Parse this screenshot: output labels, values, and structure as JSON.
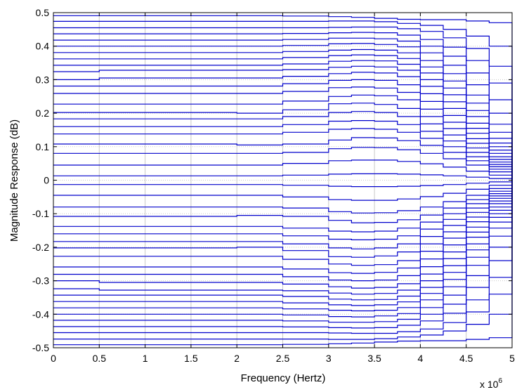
{
  "chart_data": {
    "type": "line",
    "title": "",
    "xlabel": "Frequency (Hertz)",
    "ylabel": "Magnitude Response (dB)",
    "x_multiplier_prefix": "x 10",
    "x_multiplier_exponent": "6",
    "xlim": [
      0,
      5000000
    ],
    "ylim": [
      -0.5,
      0.5
    ],
    "x_ticks": [
      0,
      500000,
      1000000,
      1500000,
      2000000,
      2500000,
      3000000,
      3500000,
      4000000,
      4500000,
      5000000
    ],
    "x_tick_labels": [
      "0",
      "0.5",
      "1",
      "1.5",
      "2",
      "2.5",
      "3",
      "3.5",
      "4",
      "4.5",
      "5"
    ],
    "y_ticks": [
      0.5,
      0.4,
      0.3,
      0.2,
      0.1,
      0,
      -0.1,
      -0.2,
      -0.3,
      -0.4,
      -0.5
    ],
    "y_tick_labels": [
      "0.5",
      "0.4",
      "0.3",
      "0.2",
      "0.1",
      "0",
      "-0.1",
      "-0.2",
      "-0.3",
      "-0.4",
      "-0.5"
    ],
    "grid": true,
    "line_color": "#0000cc",
    "series_x": [
      0,
      500000,
      1000000,
      1500000,
      2000000,
      2500000,
      3000000,
      3250000,
      3500000,
      3750000,
      4000000,
      4250000,
      4500000,
      4750000,
      5000000
    ],
    "series": [
      {
        "values": [
          0.491,
          0.491,
          0.491,
          0.491,
          0.491,
          0.49,
          0.488,
          0.486,
          0.483,
          0.48,
          0.479,
          0.479,
          0.475,
          0.47,
          0.0
        ]
      },
      {
        "values": [
          0.474,
          0.474,
          0.474,
          0.474,
          0.474,
          0.474,
          0.475,
          0.475,
          0.473,
          0.468,
          0.462,
          0.45,
          0.43,
          0.4,
          0.0
        ]
      },
      {
        "values": [
          0.455,
          0.455,
          0.455,
          0.455,
          0.455,
          0.455,
          0.456,
          0.457,
          0.457,
          0.452,
          0.444,
          0.425,
          0.393,
          0.34,
          0.0
        ]
      },
      {
        "values": [
          0.437,
          0.437,
          0.437,
          0.437,
          0.437,
          0.438,
          0.44,
          0.441,
          0.44,
          0.433,
          0.42,
          0.397,
          0.357,
          0.29,
          0.0
        ]
      },
      {
        "values": [
          0.418,
          0.418,
          0.418,
          0.418,
          0.418,
          0.42,
          0.424,
          0.424,
          0.422,
          0.415,
          0.4,
          0.37,
          0.32,
          0.24,
          0.0
        ]
      },
      {
        "values": [
          0.4,
          0.4,
          0.4,
          0.4,
          0.4,
          0.402,
          0.407,
          0.408,
          0.405,
          0.398,
          0.38,
          0.343,
          0.285,
          0.2,
          0.0
        ]
      },
      {
        "values": [
          0.381,
          0.381,
          0.381,
          0.381,
          0.381,
          0.384,
          0.388,
          0.39,
          0.388,
          0.38,
          0.357,
          0.318,
          0.254,
          0.167,
          0.0
        ]
      },
      {
        "values": [
          0.362,
          0.362,
          0.362,
          0.362,
          0.362,
          0.366,
          0.372,
          0.374,
          0.372,
          0.363,
          0.338,
          0.296,
          0.23,
          0.143,
          0.0
        ]
      },
      {
        "values": [
          0.343,
          0.343,
          0.343,
          0.343,
          0.343,
          0.347,
          0.355,
          0.357,
          0.356,
          0.346,
          0.32,
          0.275,
          0.208,
          0.125,
          0.0
        ]
      },
      {
        "values": [
          0.324,
          0.328,
          0.328,
          0.328,
          0.328,
          0.33,
          0.337,
          0.34,
          0.338,
          0.328,
          0.3,
          0.255,
          0.19,
          0.111,
          0.0
        ]
      },
      {
        "values": [
          0.3,
          0.305,
          0.305,
          0.305,
          0.305,
          0.31,
          0.318,
          0.322,
          0.32,
          0.309,
          0.28,
          0.234,
          0.17,
          0.1,
          0.0
        ]
      },
      {
        "values": [
          0.281,
          0.281,
          0.281,
          0.281,
          0.281,
          0.288,
          0.298,
          0.3,
          0.298,
          0.285,
          0.258,
          0.214,
          0.155,
          0.09,
          0.0
        ]
      },
      {
        "values": [
          0.259,
          0.259,
          0.259,
          0.259,
          0.259,
          0.265,
          0.276,
          0.278,
          0.275,
          0.262,
          0.235,
          0.193,
          0.14,
          0.08,
          0.0
        ]
      },
      {
        "values": [
          0.227,
          0.227,
          0.227,
          0.227,
          0.227,
          0.236,
          0.25,
          0.254,
          0.252,
          0.24,
          0.212,
          0.173,
          0.124,
          0.07,
          0.0
        ]
      },
      {
        "values": [
          0.202,
          0.202,
          0.202,
          0.202,
          0.2,
          0.21,
          0.228,
          0.23,
          0.226,
          0.214,
          0.19,
          0.154,
          0.11,
          0.062,
          0.0
        ]
      },
      {
        "values": [
          0.183,
          0.183,
          0.183,
          0.183,
          0.183,
          0.19,
          0.202,
          0.205,
          0.202,
          0.19,
          0.168,
          0.135,
          0.096,
          0.054,
          0.0
        ]
      },
      {
        "values": [
          0.16,
          0.16,
          0.16,
          0.16,
          0.16,
          0.166,
          0.176,
          0.178,
          0.176,
          0.166,
          0.146,
          0.117,
          0.083,
          0.047,
          0.0
        ]
      },
      {
        "values": [
          0.138,
          0.138,
          0.138,
          0.138,
          0.138,
          0.143,
          0.152,
          0.154,
          0.152,
          0.143,
          0.125,
          0.1,
          0.07,
          0.04,
          0.0
        ]
      },
      {
        "values": [
          0.108,
          0.108,
          0.108,
          0.108,
          0.105,
          0.108,
          0.12,
          0.127,
          0.126,
          0.118,
          0.104,
          0.083,
          0.058,
          0.033,
          0.0
        ]
      },
      {
        "values": [
          0.08,
          0.08,
          0.08,
          0.08,
          0.08,
          0.083,
          0.094,
          0.098,
          0.097,
          0.091,
          0.08,
          0.064,
          0.045,
          0.025,
          0.0
        ]
      },
      {
        "values": [
          0.045,
          0.045,
          0.045,
          0.045,
          0.045,
          0.05,
          0.058,
          0.06,
          0.06,
          0.056,
          0.049,
          0.039,
          0.027,
          0.015,
          0.0
        ]
      },
      {
        "values": [
          0.013,
          0.013,
          0.013,
          0.013,
          0.013,
          0.015,
          0.018,
          0.019,
          0.019,
          0.018,
          0.016,
          0.013,
          0.009,
          0.005,
          0.0
        ]
      },
      {
        "values": [
          -0.013,
          -0.013,
          -0.013,
          -0.013,
          -0.013,
          -0.015,
          -0.018,
          -0.019,
          -0.019,
          -0.018,
          -0.016,
          -0.013,
          -0.009,
          -0.005,
          0.0
        ]
      },
      {
        "values": [
          -0.045,
          -0.045,
          -0.045,
          -0.045,
          -0.045,
          -0.05,
          -0.058,
          -0.06,
          -0.06,
          -0.056,
          -0.049,
          -0.039,
          -0.027,
          -0.015,
          0.0
        ]
      },
      {
        "values": [
          -0.08,
          -0.08,
          -0.08,
          -0.08,
          -0.08,
          -0.083,
          -0.094,
          -0.098,
          -0.097,
          -0.091,
          -0.08,
          -0.064,
          -0.045,
          -0.025,
          0.0
        ]
      },
      {
        "values": [
          -0.108,
          -0.108,
          -0.108,
          -0.108,
          -0.105,
          -0.108,
          -0.12,
          -0.127,
          -0.126,
          -0.118,
          -0.104,
          -0.083,
          -0.058,
          -0.033,
          0.0
        ]
      },
      {
        "values": [
          -0.138,
          -0.138,
          -0.138,
          -0.138,
          -0.138,
          -0.143,
          -0.152,
          -0.154,
          -0.152,
          -0.143,
          -0.125,
          -0.1,
          -0.07,
          -0.04,
          0.0
        ]
      },
      {
        "values": [
          -0.16,
          -0.16,
          -0.16,
          -0.16,
          -0.16,
          -0.166,
          -0.176,
          -0.178,
          -0.176,
          -0.166,
          -0.146,
          -0.117,
          -0.083,
          -0.047,
          0.0
        ]
      },
      {
        "values": [
          -0.183,
          -0.183,
          -0.183,
          -0.183,
          -0.183,
          -0.19,
          -0.202,
          -0.205,
          -0.202,
          -0.19,
          -0.168,
          -0.135,
          -0.096,
          -0.054,
          0.0
        ]
      },
      {
        "values": [
          -0.202,
          -0.202,
          -0.202,
          -0.202,
          -0.2,
          -0.21,
          -0.228,
          -0.23,
          -0.226,
          -0.214,
          -0.19,
          -0.154,
          -0.11,
          -0.062,
          0.0
        ]
      },
      {
        "values": [
          -0.227,
          -0.227,
          -0.227,
          -0.227,
          -0.227,
          -0.236,
          -0.25,
          -0.254,
          -0.252,
          -0.24,
          -0.212,
          -0.173,
          -0.124,
          -0.07,
          0.0
        ]
      },
      {
        "values": [
          -0.259,
          -0.259,
          -0.259,
          -0.259,
          -0.259,
          -0.265,
          -0.276,
          -0.278,
          -0.275,
          -0.262,
          -0.235,
          -0.193,
          -0.14,
          -0.08,
          0.0
        ]
      },
      {
        "values": [
          -0.281,
          -0.281,
          -0.281,
          -0.281,
          -0.281,
          -0.288,
          -0.298,
          -0.3,
          -0.298,
          -0.285,
          -0.258,
          -0.214,
          -0.155,
          -0.09,
          0.0
        ]
      },
      {
        "values": [
          -0.3,
          -0.305,
          -0.305,
          -0.305,
          -0.305,
          -0.31,
          -0.318,
          -0.322,
          -0.32,
          -0.309,
          -0.28,
          -0.234,
          -0.17,
          -0.1,
          0.0
        ]
      },
      {
        "values": [
          -0.324,
          -0.328,
          -0.328,
          -0.328,
          -0.328,
          -0.33,
          -0.337,
          -0.34,
          -0.338,
          -0.328,
          -0.3,
          -0.255,
          -0.19,
          -0.111,
          0.0
        ]
      },
      {
        "values": [
          -0.343,
          -0.343,
          -0.343,
          -0.343,
          -0.343,
          -0.347,
          -0.355,
          -0.357,
          -0.356,
          -0.346,
          -0.32,
          -0.275,
          -0.208,
          -0.125,
          0.0
        ]
      },
      {
        "values": [
          -0.362,
          -0.362,
          -0.362,
          -0.362,
          -0.362,
          -0.366,
          -0.372,
          -0.374,
          -0.372,
          -0.363,
          -0.338,
          -0.296,
          -0.23,
          -0.143,
          0.0
        ]
      },
      {
        "values": [
          -0.381,
          -0.381,
          -0.381,
          -0.381,
          -0.381,
          -0.384,
          -0.388,
          -0.39,
          -0.388,
          -0.38,
          -0.357,
          -0.318,
          -0.254,
          -0.167,
          0.0
        ]
      },
      {
        "values": [
          -0.4,
          -0.4,
          -0.4,
          -0.4,
          -0.4,
          -0.402,
          -0.407,
          -0.408,
          -0.405,
          -0.398,
          -0.38,
          -0.343,
          -0.285,
          -0.2,
          0.0
        ]
      },
      {
        "values": [
          -0.418,
          -0.418,
          -0.418,
          -0.418,
          -0.418,
          -0.42,
          -0.424,
          -0.424,
          -0.422,
          -0.415,
          -0.4,
          -0.37,
          -0.32,
          -0.24,
          0.0
        ]
      },
      {
        "values": [
          -0.437,
          -0.437,
          -0.437,
          -0.437,
          -0.437,
          -0.438,
          -0.44,
          -0.441,
          -0.44,
          -0.433,
          -0.42,
          -0.397,
          -0.357,
          -0.29,
          0.0
        ]
      },
      {
        "values": [
          -0.455,
          -0.455,
          -0.455,
          -0.455,
          -0.455,
          -0.455,
          -0.456,
          -0.457,
          -0.457,
          -0.452,
          -0.444,
          -0.425,
          -0.393,
          -0.34,
          0.0
        ]
      },
      {
        "values": [
          -0.474,
          -0.474,
          -0.474,
          -0.474,
          -0.474,
          -0.474,
          -0.475,
          -0.475,
          -0.473,
          -0.468,
          -0.462,
          -0.45,
          -0.43,
          -0.4,
          0.0
        ]
      },
      {
        "values": [
          -0.491,
          -0.491,
          -0.491,
          -0.491,
          -0.491,
          -0.49,
          -0.488,
          -0.486,
          -0.483,
          -0.48,
          -0.479,
          -0.479,
          -0.475,
          -0.47,
          0.0
        ]
      }
    ]
  }
}
